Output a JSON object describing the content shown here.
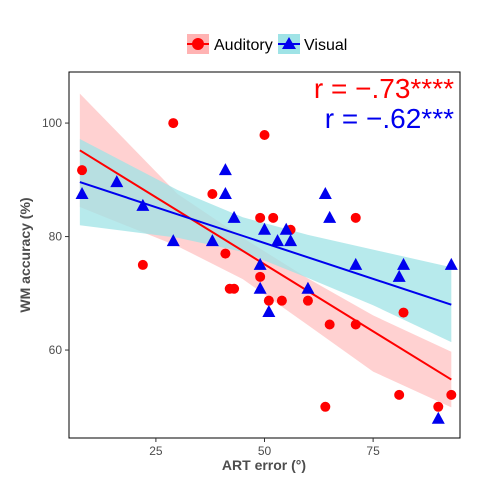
{
  "chart_data": {
    "type": "scatter",
    "xlabel": "ART error (°)",
    "ylabel": "WM accuracy (%)",
    "xlim": [
      5,
      95
    ],
    "ylim": [
      44.5,
      109
    ],
    "xticks": [
      25,
      50,
      75
    ],
    "yticks": [
      60,
      80,
      100
    ],
    "grid": false,
    "legend": {
      "placement": "top",
      "items": [
        "Auditory",
        "Visual"
      ]
    },
    "annotations": [
      {
        "text": "r = −.73****",
        "color": "#ff0000"
      },
      {
        "text": "r = −.62***",
        "color": "#0000ee"
      }
    ],
    "series": [
      {
        "name": "Auditory",
        "marker": "circle",
        "color": "#ff0000",
        "band_color": "#ffb3b3",
        "points": [
          [
            8,
            91.7
          ],
          [
            22,
            75
          ],
          [
            29,
            100
          ],
          [
            38,
            87.5
          ],
          [
            41,
            77
          ],
          [
            42,
            70.8
          ],
          [
            43,
            70.8
          ],
          [
            49,
            83.3
          ],
          [
            49,
            72.9
          ],
          [
            50,
            97.9
          ],
          [
            51,
            68.7
          ],
          [
            52,
            83.3
          ],
          [
            54,
            68.7
          ],
          [
            56,
            81.2
          ],
          [
            60,
            68.7
          ],
          [
            64,
            50
          ],
          [
            65,
            64.5
          ],
          [
            71,
            83.3
          ],
          [
            71,
            64.5
          ],
          [
            81,
            52.1
          ],
          [
            82,
            66.6
          ],
          [
            90,
            50
          ],
          [
            93,
            52.1
          ]
        ],
        "fit": [
          [
            7.5,
            95.2
          ],
          [
            93,
            54.8
          ]
        ],
        "ci_upper": [
          [
            7.5,
            105.2
          ],
          [
            30,
            87.5
          ],
          [
            45,
            79.8
          ],
          [
            60,
            72.6
          ],
          [
            75,
            66.1
          ],
          [
            93,
            59.7
          ]
        ],
        "ci_lower": [
          [
            7.5,
            85.2
          ],
          [
            30,
            78.3
          ],
          [
            45,
            72.5
          ],
          [
            60,
            64.4
          ],
          [
            75,
            56.2
          ],
          [
            93,
            49.9
          ]
        ]
      },
      {
        "name": "Visual",
        "marker": "triangle",
        "color": "#0000ee",
        "band_color": "#9fe3e6",
        "points": [
          [
            8,
            87.5
          ],
          [
            16,
            89.6
          ],
          [
            22,
            85.4
          ],
          [
            29,
            79.2
          ],
          [
            38,
            79.2
          ],
          [
            41,
            87.5
          ],
          [
            41,
            91.7
          ],
          [
            43,
            83.3
          ],
          [
            49,
            75
          ],
          [
            49,
            70.8
          ],
          [
            50,
            81.2
          ],
          [
            51,
            66.7
          ],
          [
            53,
            79.2
          ],
          [
            55,
            81.2
          ],
          [
            56,
            79.2
          ],
          [
            60,
            70.8
          ],
          [
            64,
            87.5
          ],
          [
            65,
            83.3
          ],
          [
            71,
            75
          ],
          [
            81,
            72.9
          ],
          [
            82,
            75
          ],
          [
            90,
            47.9
          ],
          [
            93,
            75
          ]
        ],
        "fit": [
          [
            7.5,
            89.6
          ],
          [
            93,
            68
          ]
        ],
        "ci_upper": [
          [
            7.5,
            97.2
          ],
          [
            30,
            88.2
          ],
          [
            45,
            83.4
          ],
          [
            60,
            80.3
          ],
          [
            75,
            77.7
          ],
          [
            93,
            74.6
          ]
        ],
        "ci_lower": [
          [
            7.5,
            82.0
          ],
          [
            30,
            79.8
          ],
          [
            45,
            77.3
          ],
          [
            60,
            72.7
          ],
          [
            75,
            67.9
          ],
          [
            93,
            61.4
          ]
        ]
      }
    ]
  }
}
